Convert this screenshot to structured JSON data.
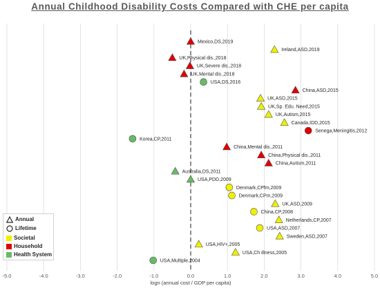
{
  "chart_data": {
    "type": "scatter",
    "title": "Annual Childhood Disability Costs Compared with CHE per capita",
    "xlabel": "logn (annual cost / GDP per capita)",
    "ylabel": "",
    "xlim": [
      -5.0,
      5.0
    ],
    "xticks": [
      "-5.0",
      "-4.0",
      "-3.0",
      "-2.0",
      "-1.0",
      "0.0",
      "1.0",
      "2.0",
      "3.0",
      "4.0",
      "5.0"
    ],
    "grid": "vertical",
    "reference_line": {
      "x": 0,
      "style": "dashed"
    },
    "colors": {
      "Societal": "#f0f000",
      "Household": "#e00000",
      "Health System": "#66bb66"
    },
    "legend": {
      "position": "bottom-left",
      "shapes": [
        {
          "label": "Annual",
          "shape": "triangle"
        },
        {
          "label": "Lifetime",
          "shape": "circle"
        }
      ],
      "perspectives": [
        {
          "label": "Societal",
          "color": "#f0f000"
        },
        {
          "label": "Household",
          "color": "#e00000"
        },
        {
          "label": "Health System",
          "color": "#66bb66"
        }
      ]
    },
    "points": [
      {
        "label": "Mexico,DS,2019",
        "x": 0.0,
        "shape": "triangle",
        "perspective": "Household"
      },
      {
        "label": "Ireland,ASD,2019",
        "x": 2.28,
        "shape": "triangle",
        "perspective": "Societal"
      },
      {
        "label": "UK,Physical dis.,2018",
        "x": -0.5,
        "shape": "triangle",
        "perspective": "Household"
      },
      {
        "label": "UK,Severe dis.,2018",
        "x": -0.02,
        "shape": "triangle",
        "perspective": "Household"
      },
      {
        "label": "UK,Mental dis.,2018",
        "x": -0.18,
        "shape": "triangle",
        "perspective": "Household"
      },
      {
        "label": "USA,DS,2016",
        "x": 0.35,
        "shape": "circle",
        "perspective": "Health System"
      },
      {
        "label": "China,ASD,2015",
        "x": 2.85,
        "shape": "triangle",
        "perspective": "Household"
      },
      {
        "label": "UK,ASD,2015",
        "x": 1.9,
        "shape": "triangle",
        "perspective": "Societal"
      },
      {
        "label": "UK,Sp. Edu. Need,2015",
        "x": 1.92,
        "shape": "triangle",
        "perspective": "Societal"
      },
      {
        "label": "UK,Autism,2015",
        "x": 2.12,
        "shape": "triangle",
        "perspective": "Societal"
      },
      {
        "label": "Canada,IDD,2015",
        "x": 2.55,
        "shape": "triangle",
        "perspective": "Societal"
      },
      {
        "label": "Senega,Meningitis,2012",
        "x": 3.2,
        "shape": "circle",
        "perspective": "Household"
      },
      {
        "label": "Korea,CP,2011",
        "x": -1.58,
        "shape": "circle",
        "perspective": "Health System"
      },
      {
        "label": "China,Mental dis.,2011",
        "x": 0.98,
        "shape": "triangle",
        "perspective": "Household"
      },
      {
        "label": "China,Physical dis.,2011",
        "x": 1.92,
        "shape": "triangle",
        "perspective": "Household"
      },
      {
        "label": "China,Autism,2011",
        "x": 2.12,
        "shape": "triangle",
        "perspective": "Household"
      },
      {
        "label": "Australia,DS,2011",
        "x": -0.42,
        "shape": "triangle",
        "perspective": "Health System"
      },
      {
        "label": "USA,PDD,2009",
        "x": 0.0,
        "shape": "triangle",
        "perspective": "Health System"
      },
      {
        "label": "Denmark,CPfm,2009",
        "x": 1.05,
        "shape": "circle",
        "perspective": "Societal"
      },
      {
        "label": "Denmark,CPm,2009",
        "x": 1.12,
        "shape": "circle",
        "perspective": "Societal"
      },
      {
        "label": "UK,ASD,2009",
        "x": 2.3,
        "shape": "triangle",
        "perspective": "Societal"
      },
      {
        "label": "China,CP,2008",
        "x": 1.72,
        "shape": "circle",
        "perspective": "Societal"
      },
      {
        "label": "Netherlands,CP,2007",
        "x": 2.4,
        "shape": "triangle",
        "perspective": "Societal"
      },
      {
        "label": "USA,ASD,2007",
        "x": 1.88,
        "shape": "circle",
        "perspective": "Societal"
      },
      {
        "label": "Sweden,ASD,2007",
        "x": 2.42,
        "shape": "triangle",
        "perspective": "Societal"
      },
      {
        "label": "USA,HIV+,2005",
        "x": 0.22,
        "shape": "triangle",
        "perspective": "Societal"
      },
      {
        "label": "USA,Ch illness,2005",
        "x": 1.22,
        "shape": "triangle",
        "perspective": "Societal"
      },
      {
        "label": "USA,Multiple,2004",
        "x": -1.02,
        "shape": "circle",
        "perspective": "Health System"
      }
    ]
  }
}
